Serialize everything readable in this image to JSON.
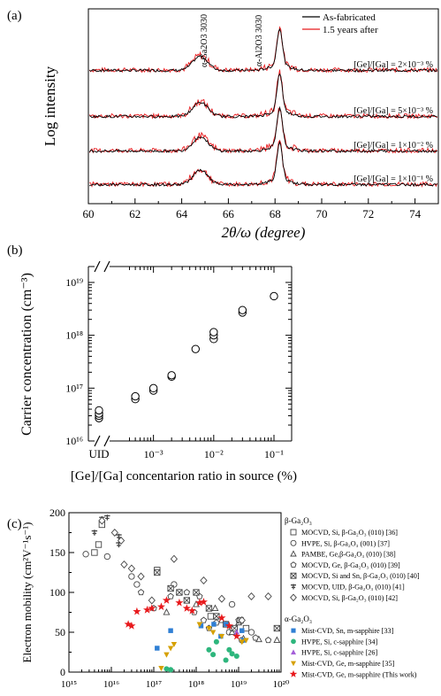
{
  "panels": {
    "a": "(a)",
    "b": "(b)",
    "c": "(c)"
  },
  "chart_data": [
    {
      "type": "line",
      "panel": "(a)",
      "xlabel": "2θ/ω (degree)",
      "ylabel": "Log intensity",
      "xlim": [
        60,
        75
      ],
      "x_ticks": [
        60,
        62,
        64,
        66,
        68,
        70,
        72,
        74
      ],
      "legend_position": "top-right",
      "series": [
        {
          "name": "As-fabricated",
          "color": "#000000"
        },
        {
          "name": "1.5 years after",
          "color": "#e8191c"
        }
      ],
      "peaks": [
        {
          "label": "α-Ga₂O₃ 30$\\bar{3}$0",
          "text": "α-Ga2O3 3030",
          "x": 64.8
        },
        {
          "label": "α-Al₂O₃ 30$\\bar{3}$0",
          "text": "α-Al2O3 3030",
          "x": 68.2
        }
      ],
      "traces": [
        {
          "annotation": "[Ge]/[Ga] = 2×10⁻³ %"
        },
        {
          "annotation": "[Ge]/[Ga] = 5×10⁻³ %"
        },
        {
          "annotation": "[Ge]/[Ga] = 1×10⁻² %"
        },
        {
          "annotation": "[Ge]/[Ga] = 1×10⁻¹ %"
        }
      ]
    },
    {
      "type": "scatter",
      "panel": "(b)",
      "xlabel": "[Ge]/[Ga] concentarion ratio in source (%)",
      "ylabel": "Carrier concentration (cm⁻³)",
      "x_scale": "log",
      "y_scale": "log",
      "xlim": [
        0.0003,
        0.15
      ],
      "ylim": [
        1e+16,
        2e+19
      ],
      "x_tick_labels": [
        "UID",
        "10⁻³",
        "10⁻²",
        "10⁻¹"
      ],
      "y_tick_labels": [
        "10¹⁶",
        "10¹⁷",
        "10¹⁸",
        "10¹⁹"
      ],
      "uid_points": [
        2.7e+16,
        3e+16,
        3.3e+16,
        3.8e+16
      ],
      "points": [
        {
          "x": 0.0005,
          "y": 6.2e+16
        },
        {
          "x": 0.0005,
          "y": 7e+16
        },
        {
          "x": 0.001,
          "y": 9e+16
        },
        {
          "x": 0.001,
          "y": 1e+17
        },
        {
          "x": 0.002,
          "y": 1.65e+17
        },
        {
          "x": 0.002,
          "y": 1.75e+17
        },
        {
          "x": 0.005,
          "y": 5.5e+17
        },
        {
          "x": 0.01,
          "y": 8.5e+17
        },
        {
          "x": 0.01,
          "y": 1e+18
        },
        {
          "x": 0.01,
          "y": 1.15e+18
        },
        {
          "x": 0.03,
          "y": 2.7e+18
        },
        {
          "x": 0.03,
          "y": 3e+18
        },
        {
          "x": 0.1,
          "y": 5.5e+18
        }
      ]
    },
    {
      "type": "scatter",
      "panel": "(c)",
      "ylabel": "Electron mobility (cm²V⁻¹s⁻¹)",
      "x_scale": "log",
      "xlim": [
        1000000000000000.0,
        1e+20
      ],
      "ylim": [
        0,
        200
      ],
      "y_ticks": [
        0,
        50,
        100,
        150,
        200
      ],
      "x_tick_labels": [
        "10¹⁵",
        "10¹⁶",
        "10¹⁷",
        "10¹⁸",
        "10¹⁹",
        "10²⁰"
      ],
      "legend_groups": [
        {
          "title": "β-Ga₂O₃",
          "items": [
            {
              "id": "s1",
              "label": "MOCVD, Si, β-Ga₂O₃ (010) [36]",
              "marker": "square-open",
              "color": "#444444"
            },
            {
              "id": "s2",
              "label": "HVPE, Si, β-Ga₂O₃ (001) [37]",
              "marker": "circle-open",
              "color": "#444444"
            },
            {
              "id": "s3",
              "label": "PAMBE, Ge,β-Ga₂O₃ (010) [38]",
              "marker": "triangle-open",
              "color": "#444444"
            },
            {
              "id": "s4",
              "label": "MOCVD, Ge, β-Ga₂O₃ (010) [39]",
              "marker": "pentagon-open",
              "color": "#444444"
            },
            {
              "id": "s5",
              "label": "MOCVD, Si and Sn, β-Ga₂O₃ (010) [40]",
              "marker": "square-x",
              "color": "#444444"
            },
            {
              "id": "s6",
              "label": "MOCVD, UID, β-Ga₂O₃ (010) [41]",
              "marker": "cross-bar",
              "color": "#444444"
            },
            {
              "id": "s7",
              "label": "MOCVD, Si, β-Ga₂O₃ (010) [42]",
              "marker": "diamond-open",
              "color": "#444444"
            }
          ]
        },
        {
          "title": "α-Ga₂O₃",
          "items": [
            {
              "id": "s8",
              "label": "Mist-CVD, Sn, m-sapphire [33]",
              "marker": "square-filled",
              "color": "#2f7fd4"
            },
            {
              "id": "s9",
              "label": "HVPE, Si, c-sapphire [34]",
              "marker": "circle-filled",
              "color": "#2eb67d"
            },
            {
              "id": "s10",
              "label": "HVPE, Si, c-sapphire [26]",
              "marker": "triangle-filled",
              "color": "#a45fd8"
            },
            {
              "id": "s11",
              "label": "Mist-CVD, Ge, m-sapphire [35]",
              "marker": "triangle-down-filled",
              "color": "#d6a000"
            },
            {
              "id": "s12",
              "label": "Mist-CVD, Ge, m-sapphire (This work)",
              "marker": "star-filled",
              "color": "#e8191c"
            }
          ]
        }
      ],
      "points": {
        "s1": [
          [
            6000000000000000.0,
            185
          ],
          [
            5000000000000000.0,
            160
          ],
          [
            4000000000000000.0,
            150
          ],
          [
            1.2e+17,
            128
          ],
          [
            2.2e+18,
            70
          ],
          [
            1.5e+19,
            55
          ]
        ],
        "s2": [
          [
            2500000000000000.0,
            148
          ],
          [
            8000000000000000.0,
            145
          ],
          [
            3e+16,
            120
          ],
          [
            4e+16,
            110
          ],
          [
            3e+17,
            110
          ],
          [
            7e+18,
            85
          ],
          [
            6e+18,
            50
          ],
          [
            1.2e+19,
            40
          ],
          [
            2e+19,
            50
          ]
        ],
        "s3": [
          [
            2e+17,
            75
          ],
          [
            4e+17,
            100
          ],
          [
            1e+18,
            85
          ],
          [
            2.8e+18,
            80
          ],
          [
            4e+18,
            65
          ],
          [
            7e+18,
            50
          ],
          [
            1e+19,
            62
          ],
          [
            1.3e+19,
            42
          ],
          [
            3e+19,
            41
          ],
          [
            8e+19,
            40
          ]
        ],
        "s4": [
          [
            5e+16,
            100
          ],
          [
            1e+17,
            80
          ],
          [
            2.5e+17,
            95
          ],
          [
            6e+17,
            100
          ],
          [
            9e+17,
            75
          ],
          [
            1.2e+18,
            95
          ],
          [
            1.5e+18,
            65
          ],
          [
            2e+18,
            55
          ],
          [
            3e+18,
            62
          ],
          [
            5e+18,
            60
          ],
          [
            7e+18,
            55
          ],
          [
            1e+19,
            65
          ],
          [
            2.5e+19,
            43
          ],
          [
            5e+19,
            40
          ]
        ],
        "s5": [
          [
            1.2e+17,
            125
          ],
          [
            2.5e+17,
            105
          ],
          [
            4e+17,
            100
          ],
          [
            6e+17,
            90
          ],
          [
            1e+18,
            100
          ],
          [
            2e+18,
            80
          ],
          [
            3e+18,
            70
          ],
          [
            5e+18,
            60
          ],
          [
            8e+18,
            55
          ],
          [
            1.1e+19,
            65
          ],
          [
            8e+19,
            55
          ]
        ],
        "s6": [
          [
            6000000000000000.0,
            192
          ],
          [
            8000000000000000.0,
            194
          ],
          [
            4000000000000000.0,
            175
          ],
          [
            1.5e+16,
            170
          ],
          [
            1.5e+16,
            160
          ]
        ],
        "s7": [
          [
            6000000000000000.0,
            190
          ],
          [
            1.2e+16,
            175
          ],
          [
            1.7e+16,
            165
          ],
          [
            2e+16,
            135
          ],
          [
            3e+16,
            130
          ],
          [
            5e+16,
            120
          ],
          [
            9e+16,
            90
          ],
          [
            3e+17,
            142
          ],
          [
            1.5e+18,
            115
          ],
          [
            4e+18,
            92
          ],
          [
            1.2e+19,
            65
          ],
          [
            2e+19,
            95
          ],
          [
            5e+19,
            95
          ]
        ],
        "s8": [
          [
            1.2e+17,
            30
          ],
          [
            2.5e+17,
            52
          ],
          [
            1.3e+18,
            58
          ],
          [
            2.6e+18,
            60
          ],
          [
            3.8e+18,
            45
          ],
          [
            5e+18,
            60
          ],
          [
            1.2e+19,
            52
          ],
          [
            1.3e+19,
            40
          ]
        ],
        "s9": [
          [
            2e+17,
            4
          ],
          [
            2.5e+17,
            3
          ],
          [
            2e+18,
            28
          ],
          [
            2.5e+18,
            22
          ],
          [
            3e+18,
            38
          ],
          [
            6e+18,
            28
          ],
          [
            7e+18,
            23
          ],
          [
            9e+18,
            20
          ],
          [
            5e+18,
            15
          ]
        ],
        "s10": [
          [
            9e+18,
            50
          ]
        ],
        "s11": [
          [
            1.5e+17,
            5
          ],
          [
            2e+17,
            22
          ],
          [
            2.5e+17,
            30
          ],
          [
            3e+17,
            35
          ],
          [
            1.2e+18,
            60
          ],
          [
            2e+18,
            55
          ],
          [
            2.5e+18,
            50
          ],
          [
            4e+18,
            45
          ],
          [
            1.2e+19,
            38
          ],
          [
            1.5e+19,
            40
          ]
        ],
        "s12": [
          [
            2.5e+16,
            60
          ],
          [
            3e+16,
            58
          ],
          [
            4e+16,
            76
          ],
          [
            7e+16,
            78
          ],
          [
            9e+16,
            80
          ],
          [
            1.5e+17,
            82
          ],
          [
            2e+17,
            90
          ],
          [
            4e+17,
            87
          ],
          [
            6e+17,
            80
          ],
          [
            8e+17,
            77
          ],
          [
            1.2e+18,
            87
          ],
          [
            1.5e+18,
            88
          ],
          [
            4e+18,
            68
          ],
          [
            6e+18,
            58
          ],
          [
            9e+18,
            45
          ]
        ]
      }
    }
  ]
}
